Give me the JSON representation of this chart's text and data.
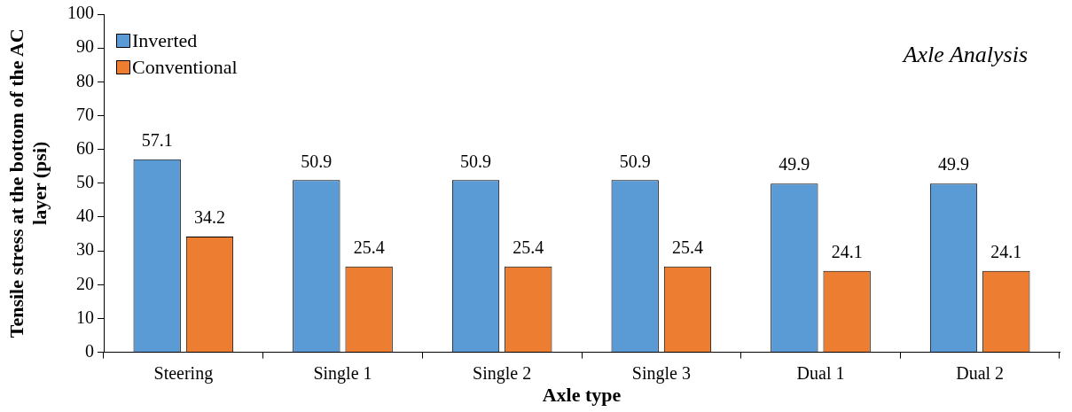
{
  "chart_data": {
    "type": "bar",
    "categories": [
      "Steering",
      "Single 1",
      "Single 2",
      "Single 3",
      "Dual 1",
      "Dual 2"
    ],
    "series": [
      {
        "name": "Inverted",
        "color": "#5b9bd5",
        "values": [
          57.1,
          50.9,
          50.9,
          50.9,
          49.9,
          49.9
        ]
      },
      {
        "name": "Conventional",
        "color": "#ed7d31",
        "values": [
          34.2,
          25.4,
          25.4,
          25.4,
          24.1,
          24.1
        ]
      }
    ],
    "xlabel": "Axle type",
    "ylabel": "Tensile stress at the bottom of the AC layer (psi)",
    "ylim": [
      0,
      100
    ],
    "yticks": [
      0,
      10,
      20,
      30,
      40,
      50,
      60,
      70,
      80,
      90,
      100
    ],
    "annotations": [
      "Axle Analysis"
    ],
    "data_labels": true,
    "legend": "top left",
    "grid": false
  }
}
